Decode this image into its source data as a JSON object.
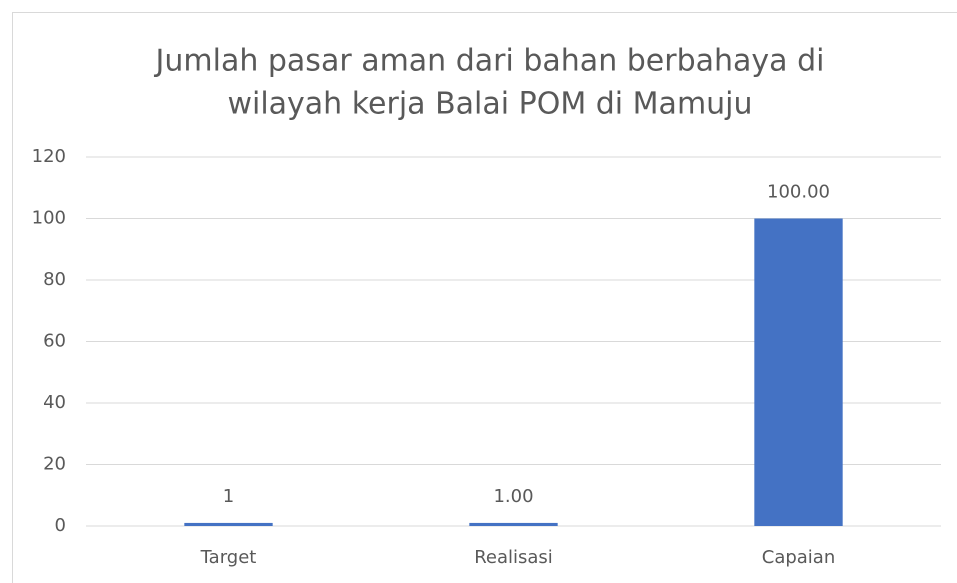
{
  "chart_data": {
    "type": "bar",
    "title": [
      "Jumlah pasar aman dari bahan berbahaya di",
      "wilayah kerja Balai POM di Mamuju"
    ],
    "categories": [
      "Target",
      "Realisasi",
      "Capaian"
    ],
    "values": [
      1,
      1,
      100
    ],
    "value_labels": [
      "1",
      "1.00",
      "100.00"
    ],
    "color": "#4472c4",
    "ylim": [
      0,
      120
    ],
    "yticks": [
      0,
      20,
      40,
      60,
      80,
      100,
      120
    ],
    "grid": true
  }
}
